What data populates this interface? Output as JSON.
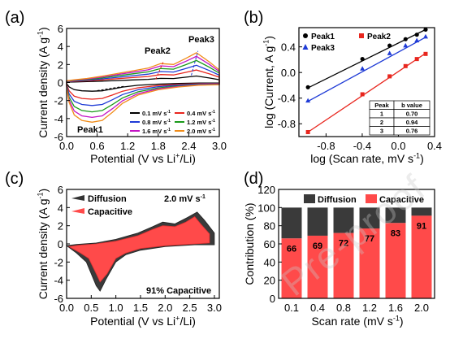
{
  "watermark": "Pre-proof",
  "chart_data": [
    {
      "id": "a",
      "panel_label": "(a)",
      "type": "line",
      "xlabel_parts": [
        "Potential (V vs Li",
        "+",
        "/Li)"
      ],
      "ylabel": "Current density (A g",
      "ylabel_sup": "-1",
      "xlim": [
        0.0,
        3.0
      ],
      "ylim": [
        -6,
        6
      ],
      "xticks": [
        "0.0",
        "0.6",
        "1.2",
        "1.8",
        "2.4",
        "3.0"
      ],
      "yticks": [
        "-6",
        "-4",
        "-2",
        "0",
        "2",
        "4",
        "6"
      ],
      "peak_labels": [
        {
          "text": "Peak1",
          "color": "#000000"
        },
        {
          "text": "Peak2",
          "color": "#e8261e"
        },
        {
          "text": "Peak3",
          "color": "#1f3bd6"
        }
      ],
      "legend": [
        "0.1 mV s",
        "0.4 mV s",
        "0.8 mV s",
        "1.2 mV s",
        "1.6 mV s",
        "2.0 mV s"
      ],
      "legend_unit_sup": "-1",
      "series": [
        {
          "name": "0.1 mV s",
          "color": "#000000",
          "scale": 0.22
        },
        {
          "name": "0.4 mV s",
          "color": "#e8261e",
          "scale": 0.42
        },
        {
          "name": "0.8 mV s",
          "color": "#1f3bd6",
          "scale": 0.58
        },
        {
          "name": "1.2 mV s",
          "color": "#1a9a1a",
          "scale": 0.74
        },
        {
          "name": "1.6 mV s",
          "color": "#c414c4",
          "scale": 0.88
        },
        {
          "name": "2.0 mV s",
          "color": "#f08c1a",
          "scale": 1.0
        }
      ]
    },
    {
      "id": "b",
      "panel_label": "(b)",
      "type": "scatter",
      "xlabel": "log (Scan rate, mV s",
      "xlabel_sup": "-1",
      "ylabel": "log (Current, A g",
      "ylabel_sup": "-1",
      "xlim": [
        -1.1,
        0.4
      ],
      "ylim": [
        -1.0,
        0.7
      ],
      "xticks": [
        -0.8,
        -0.4,
        0.0,
        0.4
      ],
      "yticks": [
        -0.8,
        -0.4,
        0.0,
        0.4
      ],
      "x": [
        -1.0,
        -0.398,
        -0.097,
        0.079,
        0.204,
        0.301
      ],
      "series": [
        {
          "name": "Peak1",
          "color": "#000000",
          "marker": "circle",
          "y": [
            -0.23,
            0.21,
            0.42,
            0.52,
            0.59,
            0.67
          ],
          "fit": [
            -0.24,
            0.67
          ]
        },
        {
          "name": "Peak2",
          "color": "#e8261e",
          "marker": "square",
          "y": [
            -0.93,
            -0.34,
            -0.06,
            0.1,
            0.21,
            0.29
          ],
          "fit": [
            -0.93,
            0.3
          ]
        },
        {
          "name": "Peak3",
          "color": "#1f3bd6",
          "marker": "triangle",
          "y": [
            -0.44,
            0.06,
            0.3,
            0.42,
            0.5,
            0.56
          ],
          "fit": [
            -0.45,
            0.55
          ]
        }
      ],
      "table": {
        "headers": [
          "Peak",
          "b value"
        ],
        "rows": [
          [
            "1",
            "0.70"
          ],
          [
            "2",
            "0.94"
          ],
          [
            "3",
            "0.76"
          ]
        ]
      }
    },
    {
      "id": "c",
      "panel_label": "(c)",
      "type": "area",
      "xlabel_parts": [
        "Potential (V vs Li",
        "+",
        "/Li)"
      ],
      "ylabel": "Current density (A g",
      "ylabel_sup": "-1",
      "xlim": [
        0.0,
        3.1
      ],
      "ylim": [
        -6,
        6
      ],
      "xticks": [
        "0.0",
        "0.5",
        "1.0",
        "1.5",
        "2.0",
        "2.5",
        "3.0"
      ],
      "xtick_values": [
        0.0,
        0.5,
        1.0,
        1.5,
        2.0,
        2.5,
        3.0
      ],
      "yticks": [
        "-6",
        "-4",
        "-2",
        "0",
        "2",
        "4",
        "6"
      ],
      "legend": [
        {
          "name": "Diffusion",
          "color": "#333333"
        },
        {
          "name": "Capacitive",
          "color": "#ff4a4a"
        }
      ],
      "annotation_rate": "2.0 mV s",
      "annotation_rate_sup": "-1",
      "annotation_pct": "91% Capacitive"
    },
    {
      "id": "d",
      "panel_label": "(d)",
      "type": "bar",
      "xlabel": "Scan rate (mV s",
      "xlabel_sup": "-1",
      "ylabel": "Contribution (%)",
      "ylim": [
        0,
        120
      ],
      "yticks": [
        0,
        20,
        40,
        60,
        80,
        100,
        120
      ],
      "categories": [
        "0.1",
        "0.4",
        "0.8",
        "1.2",
        "1.6",
        "2.0"
      ],
      "series": [
        {
          "name": "Capacitive",
          "color": "#ff4a4a",
          "values": [
            66,
            69,
            72,
            77,
            83,
            91
          ]
        },
        {
          "name": "Diffusion",
          "color": "#3a3a3a",
          "values": [
            34,
            31,
            28,
            23,
            17,
            9
          ]
        }
      ],
      "legend": [
        {
          "name": "Diffusion",
          "color": "#3a3a3a"
        },
        {
          "name": "Capacitive",
          "color": "#ff4a4a"
        }
      ]
    }
  ]
}
